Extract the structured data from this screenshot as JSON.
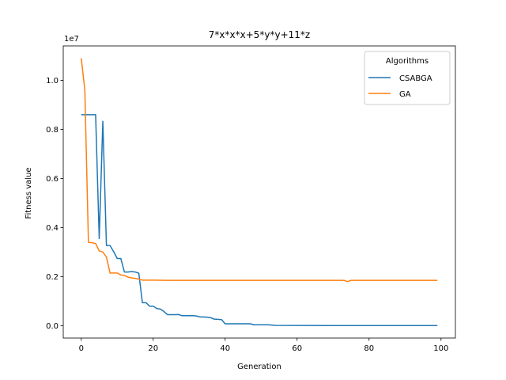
{
  "chart_data": {
    "type": "line",
    "title": "7*x*x*x+5*y*y+11*z",
    "xlabel": "Generation",
    "ylabel": "Fitness value",
    "y_offset_text": "1e7",
    "xlim": [
      -5,
      104
    ],
    "ylim": [
      -0.05,
      1.14
    ],
    "x_ticks": [
      0,
      20,
      40,
      60,
      80,
      100
    ],
    "x_tick_labels": [
      "0",
      "20",
      "40",
      "60",
      "80",
      "100"
    ],
    "y_ticks": [
      0.0,
      0.2,
      0.4,
      0.6,
      0.8,
      1.0
    ],
    "y_tick_labels": [
      "0.0",
      "0.2",
      "0.4",
      "0.6",
      "0.8",
      "1.0"
    ],
    "grid": false,
    "legend": {
      "title": "Algorithms",
      "placement": "top-right"
    },
    "series": [
      {
        "name": "CSABGA",
        "color": "#1f77b4",
        "points": [
          [
            0,
            0.86
          ],
          [
            1,
            0.86
          ],
          [
            2,
            0.86
          ],
          [
            3,
            0.86
          ],
          [
            4,
            0.86
          ],
          [
            5,
            0.355
          ],
          [
            6,
            0.833
          ],
          [
            7,
            0.327
          ],
          [
            8,
            0.327
          ],
          [
            9,
            0.302
          ],
          [
            10,
            0.274
          ],
          [
            11,
            0.274
          ],
          [
            12,
            0.219
          ],
          [
            13,
            0.219
          ],
          [
            14,
            0.221
          ],
          [
            15,
            0.219
          ],
          [
            16,
            0.214
          ],
          [
            17,
            0.094
          ],
          [
            18,
            0.094
          ],
          [
            19,
            0.08
          ],
          [
            20,
            0.08
          ],
          [
            21,
            0.07
          ],
          [
            22,
            0.068
          ],
          [
            23,
            0.058
          ],
          [
            24,
            0.045
          ],
          [
            25,
            0.045
          ],
          [
            26,
            0.045
          ],
          [
            27,
            0.046
          ],
          [
            28,
            0.041
          ],
          [
            29,
            0.041
          ],
          [
            30,
            0.041
          ],
          [
            31,
            0.041
          ],
          [
            32,
            0.04
          ],
          [
            33,
            0.036
          ],
          [
            34,
            0.036
          ],
          [
            35,
            0.035
          ],
          [
            36,
            0.033
          ],
          [
            37,
            0.027
          ],
          [
            38,
            0.026
          ],
          [
            39,
            0.025
          ],
          [
            40,
            0.008
          ],
          [
            41,
            0.008
          ],
          [
            45,
            0.008
          ],
          [
            47,
            0.008
          ],
          [
            48,
            0.004
          ],
          [
            52,
            0.004
          ],
          [
            53,
            0.003
          ],
          [
            54,
            0.0015
          ],
          [
            70,
            0.001
          ],
          [
            99,
            0.001
          ]
        ]
      },
      {
        "name": "GA",
        "color": "#ff7f0e",
        "points": [
          [
            0,
            1.09
          ],
          [
            1,
            0.96
          ],
          [
            2,
            0.34
          ],
          [
            3,
            0.338
          ],
          [
            4,
            0.335
          ],
          [
            5,
            0.305
          ],
          [
            6,
            0.3
          ],
          [
            7,
            0.28
          ],
          [
            8,
            0.215
          ],
          [
            9,
            0.215
          ],
          [
            10,
            0.215
          ],
          [
            11,
            0.207
          ],
          [
            12,
            0.205
          ],
          [
            13,
            0.198
          ],
          [
            14,
            0.195
          ],
          [
            15,
            0.193
          ],
          [
            16,
            0.19
          ],
          [
            17,
            0.186
          ],
          [
            18,
            0.186
          ],
          [
            20,
            0.186
          ],
          [
            24,
            0.185
          ],
          [
            30,
            0.185
          ],
          [
            40,
            0.185
          ],
          [
            50,
            0.185
          ],
          [
            60,
            0.185
          ],
          [
            70,
            0.185
          ],
          [
            73,
            0.185
          ],
          [
            74,
            0.18
          ],
          [
            75,
            0.185
          ],
          [
            80,
            0.185
          ],
          [
            90,
            0.185
          ],
          [
            99,
            0.185
          ]
        ]
      }
    ]
  }
}
